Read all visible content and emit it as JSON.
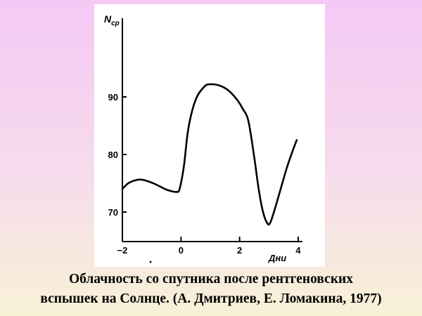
{
  "caption": {
    "line1": "Облачность со спутника после рентгеновских",
    "line2": "вспышек на Солнце. (А. Дмитриев, Е. Ломакина, 1977)"
  },
  "chart_data": {
    "type": "line",
    "title": "",
    "xlabel": "Дни",
    "ylabel_main": "N",
    "ylabel_sub": "ср",
    "xlim": [
      -2,
      4
    ],
    "ylim": [
      60,
      100
    ],
    "x_ticks": [
      -2,
      0,
      2,
      4
    ],
    "x_tick_labels": [
      "−2",
      "0",
      "2",
      "4"
    ],
    "y_ticks": [
      70,
      80,
      90
    ],
    "y_tick_labels": [
      "70",
      "80",
      "90"
    ],
    "grid": false,
    "series": [
      {
        "color": "#000000",
        "x": [
          -2.0,
          -1.8,
          -1.5,
          -1.3,
          -1.1,
          -0.9,
          -0.7,
          -0.5,
          -0.3,
          -0.15,
          -0.05,
          0.1,
          0.25,
          0.5,
          0.8,
          1.0,
          1.3,
          1.6,
          1.9,
          2.1,
          2.3,
          2.5,
          2.65,
          2.8,
          2.95,
          3.05,
          3.2,
          3.4,
          3.6,
          3.8,
          3.95
        ],
        "y": [
          74.0,
          75.0,
          75.6,
          75.6,
          75.3,
          74.9,
          74.4,
          73.9,
          73.6,
          73.5,
          74.0,
          78.0,
          84.5,
          89.5,
          91.8,
          92.2,
          92.0,
          91.2,
          89.6,
          88.0,
          85.8,
          79.5,
          74.0,
          70.0,
          68.0,
          68.2,
          70.5,
          74.0,
          77.5,
          80.5,
          82.5
        ]
      }
    ]
  }
}
